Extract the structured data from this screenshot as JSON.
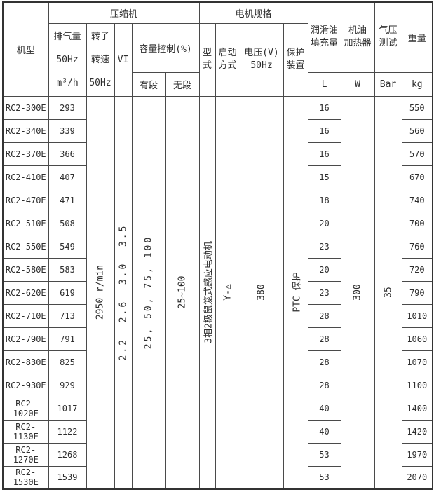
{
  "header": {
    "model": "机型",
    "compressor_group": "压缩机",
    "motor_group": "电机规格",
    "displacement": "排气量\n50Hz\nm³/h",
    "rotor_speed": "转子\n转速\n50Hz",
    "vi": "VI",
    "capacity_control": "容量控制(%)",
    "stepped": "有段",
    "stepless": "无段",
    "motor_type": "型\n式",
    "start_mode": "启动\n方式",
    "voltage": "电压(V)\n50Hz",
    "protection": "保护\n装置",
    "oil_charge": "润滑油\n填充量",
    "oil_heater": "机油\n加热器",
    "pressure_test": "气压\n测试",
    "weight": "重量",
    "unit_oil": "L",
    "unit_heater": "W",
    "unit_pressure": "Bar",
    "unit_weight": "kg"
  },
  "merged": {
    "rotor_speed": "2950 r/min",
    "vi": "2.2  2.6  3.0  3.5",
    "stepped": "25, 50, 75, 100",
    "stepless": "25~100",
    "motor_type": "3相2极鼠笼式感应电动机",
    "start_mode": "Y-△",
    "voltage": "380",
    "protection": "PTC 保护",
    "oil_heater": "300",
    "pressure_test": "35"
  },
  "rows": [
    {
      "model": "RC2-300E",
      "displacement": "293",
      "oil_charge": "16",
      "weight": "550"
    },
    {
      "model": "RC2-340E",
      "displacement": "339",
      "oil_charge": "16",
      "weight": "560"
    },
    {
      "model": "RC2-370E",
      "displacement": "366",
      "oil_charge": "16",
      "weight": "570"
    },
    {
      "model": "RC2-410E",
      "displacement": "407",
      "oil_charge": "15",
      "weight": "670"
    },
    {
      "model": "RC2-470E",
      "displacement": "471",
      "oil_charge": "18",
      "weight": "740"
    },
    {
      "model": "RC2-510E",
      "displacement": "508",
      "oil_charge": "20",
      "weight": "700"
    },
    {
      "model": "RC2-550E",
      "displacement": "549",
      "oil_charge": "23",
      "weight": "760"
    },
    {
      "model": "RC2-580E",
      "displacement": "583",
      "oil_charge": "20",
      "weight": "720"
    },
    {
      "model": "RC2-620E",
      "displacement": "619",
      "oil_charge": "23",
      "weight": "790"
    },
    {
      "model": "RC2-710E",
      "displacement": "713",
      "oil_charge": "28",
      "weight": "1010"
    },
    {
      "model": "RC2-790E",
      "displacement": "791",
      "oil_charge": "28",
      "weight": "1060"
    },
    {
      "model": "RC2-830E",
      "displacement": "825",
      "oil_charge": "28",
      "weight": "1070"
    },
    {
      "model": "RC2-930E",
      "displacement": "929",
      "oil_charge": "28",
      "weight": "1100"
    },
    {
      "model": "RC2-1020E",
      "displacement": "1017",
      "oil_charge": "40",
      "weight": "1400"
    },
    {
      "model": "RC2-1130E",
      "displacement": "1122",
      "oil_charge": "40",
      "weight": "1420"
    },
    {
      "model": "RC2-1270E",
      "displacement": "1268",
      "oil_charge": "53",
      "weight": "1970"
    },
    {
      "model": "RC2-1530E",
      "displacement": "1539",
      "oil_charge": "53",
      "weight": "2070"
    }
  ]
}
